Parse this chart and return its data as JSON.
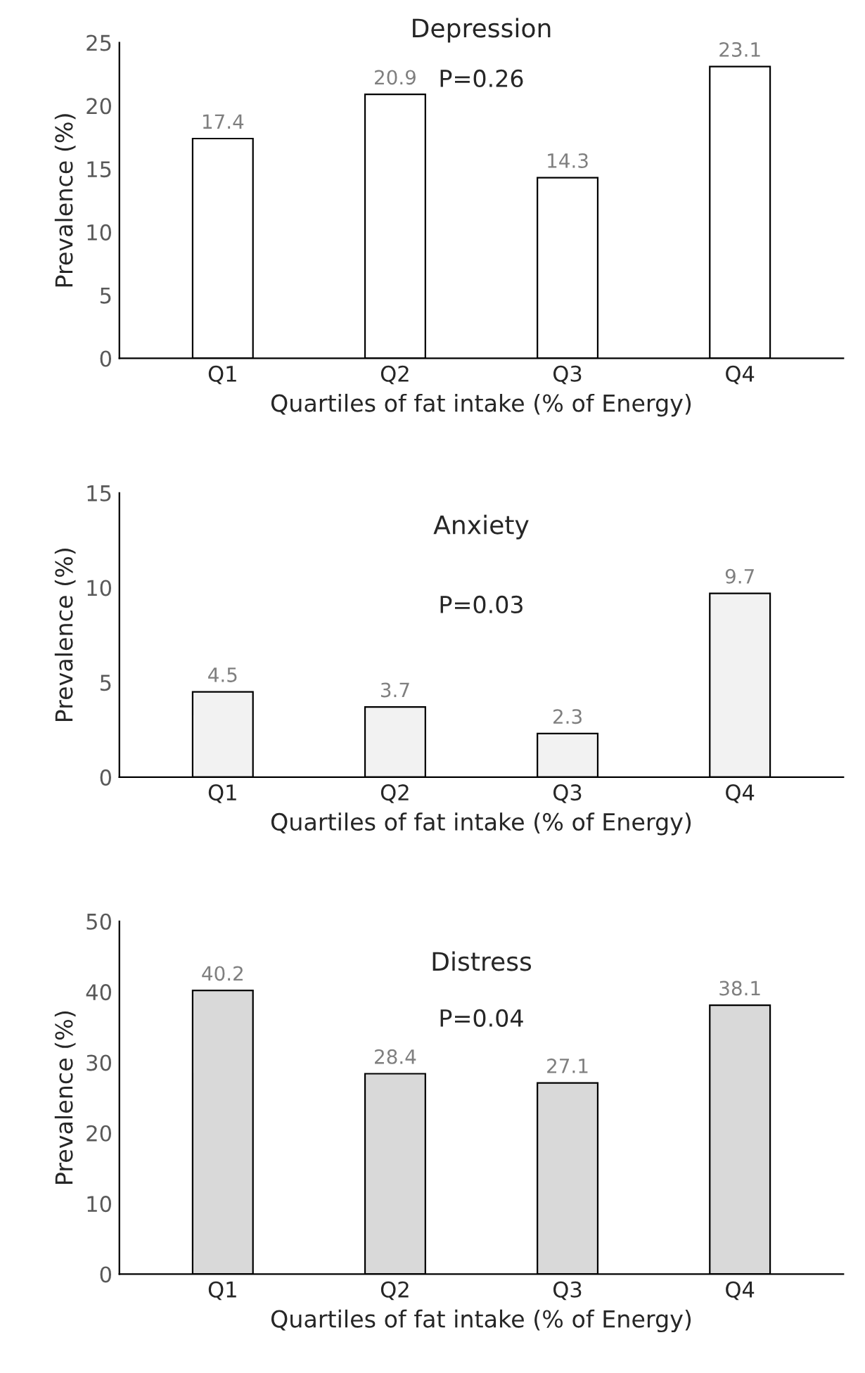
{
  "chart_data": [
    {
      "type": "bar",
      "title": "Depression",
      "xlabel": "Quartiles of fat intake (% of Energy)",
      "ylabel": "Prevalence (%)",
      "categories": [
        "Q1",
        "Q2",
        "Q3",
        "Q4"
      ],
      "values": [
        17.4,
        20.9,
        14.3,
        23.1
      ],
      "color": "#ffffff",
      "ylim": [
        0,
        25
      ],
      "yticks": [
        0,
        5,
        10,
        15,
        20,
        25
      ],
      "data_labels": true,
      "annotations": [
        "P=0.26"
      ]
    },
    {
      "type": "bar",
      "title": "Anxiety",
      "xlabel": "Quartiles of fat intake (% of Energy)",
      "ylabel": "Prevalence (%)",
      "categories": [
        "Q1",
        "Q2",
        "Q3",
        "Q4"
      ],
      "values": [
        4.5,
        3.7,
        2.3,
        9.7
      ],
      "color": "#f2f2f2",
      "ylim": [
        0,
        15
      ],
      "yticks": [
        0,
        5,
        10,
        15
      ],
      "data_labels": true,
      "annotations": [
        "P=0.03"
      ]
    },
    {
      "type": "bar",
      "title": "Distress",
      "xlabel": "Quartiles of fat intake (% of Energy)",
      "ylabel": "Prevalence (%)",
      "categories": [
        "Q1",
        "Q2",
        "Q3",
        "Q4"
      ],
      "values": [
        40.2,
        28.4,
        27.1,
        38.1
      ],
      "color": "#d9d9d9",
      "ylim": [
        0,
        50
      ],
      "yticks": [
        0,
        10,
        20,
        30,
        40,
        50
      ],
      "data_labels": true,
      "annotations": [
        "P=0.04"
      ]
    }
  ]
}
